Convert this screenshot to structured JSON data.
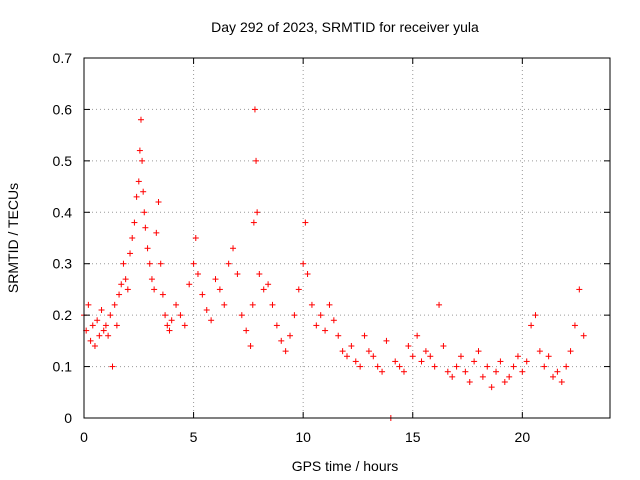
{
  "chart_data": {
    "type": "scatter",
    "title": "Day 292 of 2023, SRMTID for receiver yula",
    "xlabel": "GPS time / hours",
    "ylabel": "SRMTID / TECUs",
    "xlim": [
      0,
      24
    ],
    "ylim": [
      0,
      0.7
    ],
    "xticks": [
      0,
      5,
      10,
      15,
      20
    ],
    "yticks": [
      0,
      0.1,
      0.2,
      0.3,
      0.4,
      0.5,
      0.6,
      0.7
    ],
    "xtick_labels": [
      "0",
      "5",
      "10",
      "15",
      "20"
    ],
    "ytick_labels": [
      "0",
      "0.1",
      "0.2",
      "0.3",
      "0.4",
      "0.5",
      "0.6",
      "0.7"
    ],
    "grid": true,
    "marker": "+",
    "series": [
      {
        "name": "SRMTID",
        "color": "#ff0000",
        "x": [
          0.0,
          0.1,
          0.2,
          0.3,
          0.4,
          0.5,
          0.6,
          0.7,
          0.8,
          0.9,
          1.0,
          1.1,
          1.2,
          1.3,
          1.4,
          1.5,
          1.6,
          1.7,
          1.8,
          1.9,
          2.0,
          2.1,
          2.2,
          2.3,
          2.4,
          2.5,
          2.55,
          2.6,
          2.65,
          2.7,
          2.75,
          2.8,
          2.9,
          3.0,
          3.1,
          3.2,
          3.3,
          3.4,
          3.5,
          3.6,
          3.7,
          3.8,
          3.9,
          4.0,
          4.2,
          4.4,
          4.6,
          4.8,
          5.0,
          5.1,
          5.2,
          5.4,
          5.6,
          5.8,
          6.0,
          6.2,
          6.4,
          6.6,
          6.8,
          7.0,
          7.2,
          7.4,
          7.6,
          7.7,
          7.75,
          7.8,
          7.85,
          7.9,
          8.0,
          8.2,
          8.4,
          8.6,
          8.8,
          9.0,
          9.2,
          9.4,
          9.6,
          9.8,
          10.0,
          10.1,
          10.2,
          10.4,
          10.6,
          10.8,
          11.0,
          11.2,
          11.4,
          11.6,
          11.8,
          12.0,
          12.2,
          12.4,
          12.6,
          12.8,
          13.0,
          13.2,
          13.4,
          13.6,
          13.8,
          14.0,
          14.2,
          14.4,
          14.6,
          14.8,
          15.0,
          15.2,
          15.4,
          15.6,
          15.8,
          16.0,
          16.2,
          16.4,
          16.6,
          16.8,
          17.0,
          17.2,
          17.4,
          17.6,
          17.8,
          18.0,
          18.2,
          18.4,
          18.6,
          18.8,
          19.0,
          19.2,
          19.4,
          19.6,
          19.8,
          20.0,
          20.2,
          20.4,
          20.6,
          20.8,
          21.0,
          21.2,
          21.4,
          21.6,
          21.8,
          22.0,
          22.2,
          22.4,
          22.6,
          22.8
        ],
        "y": [
          0.2,
          0.17,
          0.22,
          0.15,
          0.18,
          0.14,
          0.19,
          0.16,
          0.21,
          0.17,
          0.18,
          0.16,
          0.2,
          0.1,
          0.22,
          0.18,
          0.24,
          0.26,
          0.3,
          0.27,
          0.25,
          0.32,
          0.35,
          0.38,
          0.43,
          0.46,
          0.52,
          0.58,
          0.5,
          0.44,
          0.4,
          0.37,
          0.33,
          0.3,
          0.27,
          0.25,
          0.36,
          0.42,
          0.3,
          0.24,
          0.2,
          0.18,
          0.17,
          0.19,
          0.22,
          0.2,
          0.18,
          0.26,
          0.3,
          0.35,
          0.28,
          0.24,
          0.21,
          0.19,
          0.27,
          0.25,
          0.22,
          0.3,
          0.33,
          0.28,
          0.2,
          0.17,
          0.14,
          0.22,
          0.38,
          0.6,
          0.5,
          0.4,
          0.28,
          0.25,
          0.26,
          0.22,
          0.18,
          0.15,
          0.13,
          0.16,
          0.2,
          0.25,
          0.3,
          0.38,
          0.28,
          0.22,
          0.18,
          0.2,
          0.17,
          0.22,
          0.19,
          0.16,
          0.13,
          0.12,
          0.14,
          0.11,
          0.1,
          0.16,
          0.13,
          0.12,
          0.1,
          0.09,
          0.15,
          0.0,
          0.11,
          0.1,
          0.09,
          0.14,
          0.12,
          0.16,
          0.11,
          0.13,
          0.12,
          0.1,
          0.22,
          0.14,
          0.09,
          0.08,
          0.1,
          0.12,
          0.09,
          0.07,
          0.11,
          0.13,
          0.08,
          0.1,
          0.06,
          0.09,
          0.11,
          0.07,
          0.08,
          0.1,
          0.12,
          0.09,
          0.11,
          0.18,
          0.2,
          0.13,
          0.1,
          0.12,
          0.08,
          0.09,
          0.07,
          0.1,
          0.13,
          0.18,
          0.25,
          0.16
        ]
      }
    ]
  }
}
